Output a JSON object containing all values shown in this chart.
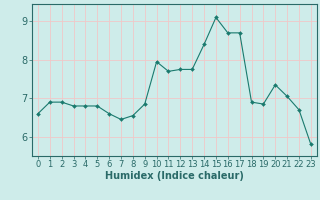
{
  "x": [
    0,
    1,
    2,
    3,
    4,
    5,
    6,
    7,
    8,
    9,
    10,
    11,
    12,
    13,
    14,
    15,
    16,
    17,
    18,
    19,
    20,
    21,
    22,
    23
  ],
  "y": [
    6.6,
    6.9,
    6.9,
    6.8,
    6.8,
    6.8,
    6.6,
    6.45,
    6.55,
    6.85,
    7.95,
    7.7,
    7.75,
    7.75,
    8.4,
    9.1,
    8.7,
    8.7,
    6.9,
    6.85,
    7.35,
    7.05,
    6.7,
    5.8
  ],
  "line_color": "#1a7a6e",
  "marker": "D",
  "marker_size": 2.0,
  "bg_color": "#ceecea",
  "grid_color": "#f0c8c8",
  "axis_color": "#2a6a68",
  "xlabel": "Humidex (Indice chaleur)",
  "xlabel_fontsize": 7,
  "tick_fontsize": 6,
  "ytick_fontsize": 7,
  "yticks": [
    6,
    7,
    8,
    9
  ],
  "xticks": [
    0,
    1,
    2,
    3,
    4,
    5,
    6,
    7,
    8,
    9,
    10,
    11,
    12,
    13,
    14,
    15,
    16,
    17,
    18,
    19,
    20,
    21,
    22,
    23
  ],
  "ylim": [
    5.5,
    9.45
  ],
  "xlim": [
    -0.5,
    23.5
  ]
}
